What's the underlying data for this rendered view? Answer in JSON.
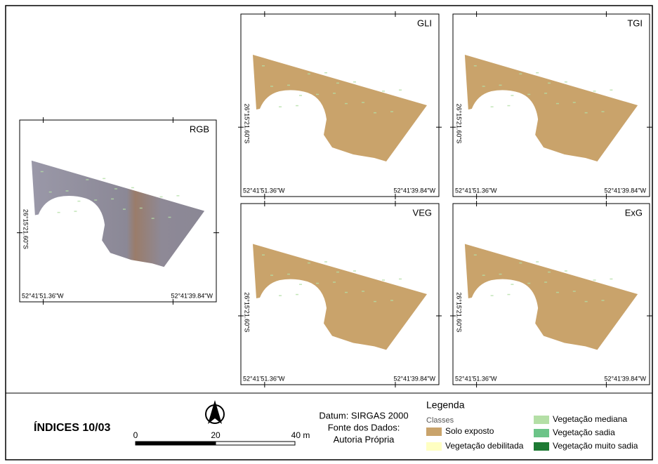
{
  "panels": [
    {
      "title": "RGB",
      "x_labels": [
        "52°41'51.36\"W",
        "52°41'39.84\"W"
      ],
      "y_label": "26°15'21.60\"S"
    },
    {
      "title": "GLI",
      "x_labels": [
        "52°41'51.36\"W",
        "52°41'39.84\"W"
      ],
      "y_label": "26°15'21.60\"S"
    },
    {
      "title": "TGI",
      "x_labels": [
        "52°41'51.36\"W",
        "52°41'39.84\"W"
      ],
      "y_label": "26°15'21.60\"S"
    },
    {
      "title": "VEG",
      "x_labels": [
        "52°41'51.36\"W",
        "52°41'39.84\"W"
      ],
      "y_label": "26°15'21.60\"S"
    },
    {
      "title": "ExG",
      "x_labels": [
        "52°41'51.36\"W",
        "52°41'39.84\"W"
      ],
      "y_label": "26°15'21.60\"S"
    }
  ],
  "footer": {
    "title": "ÍNDICES 10/03",
    "scale_labels": [
      "0",
      "20",
      "40 m"
    ],
    "datum": [
      "Datum: SIRGAS 2000",
      "Fonte dos Dados:",
      "Autoria Própria"
    ],
    "legend": {
      "title": "Legenda",
      "subtitle": "Classes",
      "items": [
        {
          "name": "Solo exposto",
          "color": "#c9a36b"
        },
        {
          "name": "Vegetação debilitada",
          "color": "#ffffc2"
        },
        {
          "name": "Vegetação mediana",
          "color": "#b4dfa6"
        },
        {
          "name": "Vegetação sadia",
          "color": "#6cc488"
        },
        {
          "name": "Vegetação muito sadia",
          "color": "#1d7a33"
        }
      ]
    }
  }
}
